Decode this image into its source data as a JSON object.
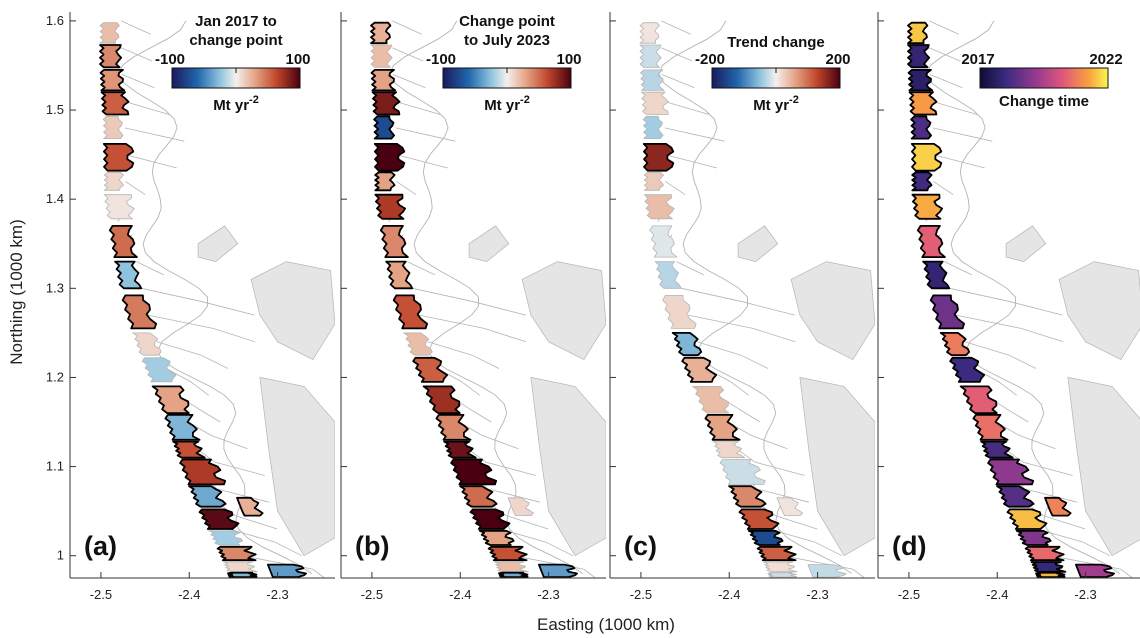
{
  "axes": {
    "xlabel": "Easting (1000 km)",
    "ylabel": "Northing (1000 km)",
    "xlim": [
      -2.535,
      -2.235
    ],
    "ylim": [
      0.975,
      1.61
    ],
    "xticks": [
      -2.5,
      -2.4,
      -2.3
    ],
    "yticks": [
      1.0,
      1.1,
      1.2,
      1.3,
      1.4,
      1.5,
      1.6
    ]
  },
  "panels": [
    {
      "letter": "(a)",
      "colorbar": {
        "title_lines": [
          "Jan 2017 to",
          "change point"
        ],
        "min_label": "-100",
        "max_label": "100",
        "unit": "Mt yr",
        "unit_sup": "-2",
        "scale": "diverging",
        "range": [
          -100,
          100
        ]
      },
      "basins": [
        {
          "v": 20
        },
        {
          "v": 40
        },
        {
          "v": 35
        },
        {
          "v": 55
        },
        {
          "v": 15
        },
        {
          "v": 60
        },
        {
          "v": 10
        },
        {
          "v": 5
        },
        {
          "v": 50
        },
        {
          "v": -25
        },
        {
          "v": 45
        },
        {
          "v": 10
        },
        {
          "v": -20
        },
        {
          "v": 30
        },
        {
          "v": -30
        },
        {
          "v": 60
        },
        {
          "v": 70
        },
        {
          "v": -35
        },
        {
          "v": 95
        },
        {
          "v": -20
        },
        {
          "v": 40
        },
        {
          "v": 10
        },
        {
          "v": -30
        },
        {
          "v": 25
        },
        {
          "v": -40
        }
      ]
    },
    {
      "letter": "(b)",
      "colorbar": {
        "title_lines": [
          "Change point",
          "to July 2023"
        ],
        "min_label": "-100",
        "max_label": "100",
        "unit": "Mt yr",
        "unit_sup": "-2",
        "scale": "diverging",
        "range": [
          -100,
          100
        ]
      },
      "basins": [
        {
          "v": 25
        },
        {
          "v": 20
        },
        {
          "v": 30
        },
        {
          "v": 85
        },
        {
          "v": -75
        },
        {
          "v": 100
        },
        {
          "v": 30
        },
        {
          "v": 70
        },
        {
          "v": 40
        },
        {
          "v": 30
        },
        {
          "v": 60
        },
        {
          "v": 20
        },
        {
          "v": 55
        },
        {
          "v": 75
        },
        {
          "v": 40
        },
        {
          "v": 90
        },
        {
          "v": 100
        },
        {
          "v": 50
        },
        {
          "v": 100
        },
        {
          "v": 30
        },
        {
          "v": 60
        },
        {
          "v": 20
        },
        {
          "v": -35
        },
        {
          "v": 10
        },
        {
          "v": -40
        }
      ]
    },
    {
      "letter": "(c)",
      "colorbar": {
        "title_lines": [
          "Trend change"
        ],
        "min_label": "-200",
        "max_label": "200",
        "unit": "Mt yr",
        "unit_sup": "-2",
        "scale": "diverging",
        "range": [
          -200,
          200
        ]
      },
      "basins": [
        {
          "v": 10
        },
        {
          "v": -20
        },
        {
          "v": -30
        },
        {
          "v": 20
        },
        {
          "v": -40
        },
        {
          "v": 160
        },
        {
          "v": 30
        },
        {
          "v": 40
        },
        {
          "v": -10
        },
        {
          "v": -30
        },
        {
          "v": 20
        },
        {
          "v": -60
        },
        {
          "v": 50
        },
        {
          "v": 40
        },
        {
          "v": 60
        },
        {
          "v": 20
        },
        {
          "v": -20
        },
        {
          "v": 80
        },
        {
          "v": 120
        },
        {
          "v": -150
        },
        {
          "v": 110
        },
        {
          "v": 15
        },
        {
          "v": -20
        },
        {
          "v": 10
        },
        {
          "v": -25
        }
      ]
    },
    {
      "letter": "(d)",
      "colorbar": {
        "title_lines": [
          "Change time"
        ],
        "min_label": "2017",
        "max_label": "2022",
        "unit": "",
        "unit_sup": "",
        "scale": "sequential",
        "range": [
          2017,
          2023
        ]
      },
      "basins": [
        {
          "v": 2022.5
        },
        {
          "v": 2018
        },
        {
          "v": 2017.8
        },
        {
          "v": 2022
        },
        {
          "v": 2018.5
        },
        {
          "v": 2022.6
        },
        {
          "v": 2018.3
        },
        {
          "v": 2022.2
        },
        {
          "v": 2021
        },
        {
          "v": 2018
        },
        {
          "v": 2019
        },
        {
          "v": 2021.5
        },
        {
          "v": 2018.2
        },
        {
          "v": 2021
        },
        {
          "v": 2021.3
        },
        {
          "v": 2018.4
        },
        {
          "v": 2019.5
        },
        {
          "v": 2018.6
        },
        {
          "v": 2022.4
        },
        {
          "v": 2019.3
        },
        {
          "v": 2021.2
        },
        {
          "v": 2018.1
        },
        {
          "v": 2022.3
        },
        {
          "v": 2021.6
        },
        {
          "v": 2019.8
        }
      ]
    }
  ],
  "colors": {
    "ice_land": "#e5e5e5",
    "basin_outline": "#b4b4b4",
    "highlight_outline": "#000000",
    "axis": "#333333"
  }
}
